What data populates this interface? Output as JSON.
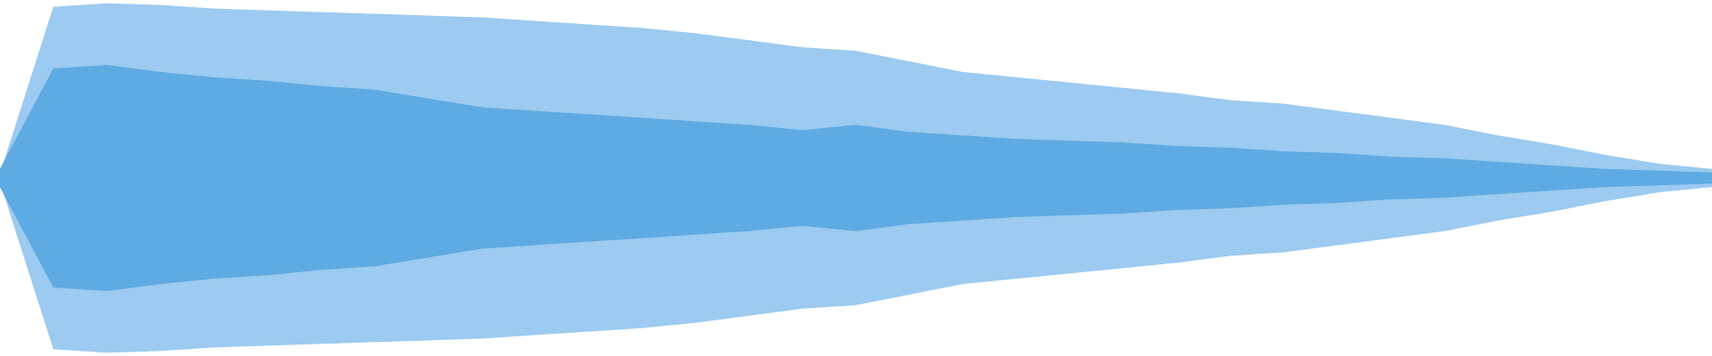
{
  "chart_data": {
    "type": "waveform",
    "x": [
      0,
      0.03125,
      0.0625,
      0.09375,
      0.125,
      0.15625,
      0.1875,
      0.21875,
      0.25,
      0.28125,
      0.3125,
      0.34375,
      0.375,
      0.40625,
      0.4375,
      0.46875,
      0.5,
      0.53125,
      0.5625,
      0.59375,
      0.625,
      0.65625,
      0.6875,
      0.71875,
      0.75,
      0.78125,
      0.8125,
      0.84375,
      0.875,
      0.90625,
      0.9375,
      0.96875,
      1
    ],
    "xlim": [
      0,
      1
    ],
    "ylim": [
      -1,
      1
    ],
    "series": [
      {
        "color": "#9ccaf0",
        "values": [
          0.02,
          0.97,
          0.99,
          0.98,
          0.96,
          0.95,
          0.94,
          0.93,
          0.92,
          0.91,
          0.89,
          0.87,
          0.85,
          0.82,
          0.78,
          0.74,
          0.72,
          0.66,
          0.6,
          0.57,
          0.54,
          0.51,
          0.48,
          0.44,
          0.42,
          0.38,
          0.34,
          0.3,
          0.24,
          0.19,
          0.13,
          0.08,
          0.05
        ]
      },
      {
        "color": "#5eaae2",
        "values": [
          0.05,
          0.62,
          0.64,
          0.6,
          0.57,
          0.55,
          0.52,
          0.5,
          0.45,
          0.4,
          0.38,
          0.36,
          0.34,
          0.32,
          0.3,
          0.27,
          0.3,
          0.26,
          0.24,
          0.22,
          0.21,
          0.2,
          0.18,
          0.17,
          0.15,
          0.14,
          0.12,
          0.11,
          0.09,
          0.07,
          0.05,
          0.04,
          0.03
        ]
      }
    ]
  }
}
